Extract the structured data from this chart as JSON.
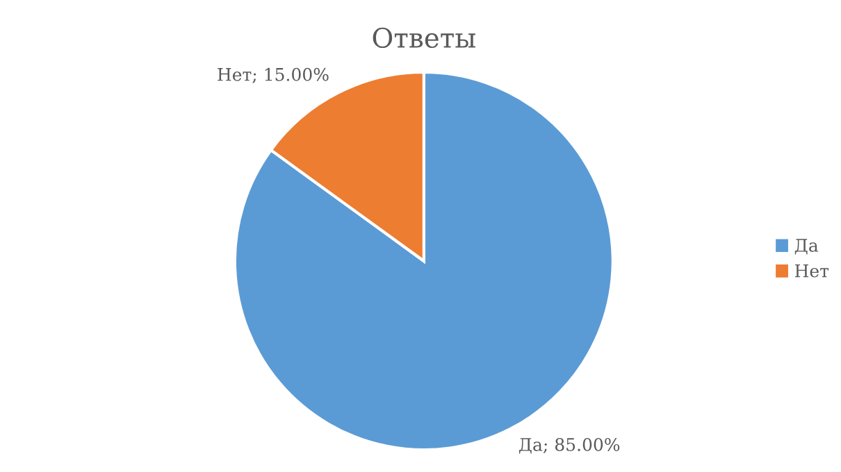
{
  "chart_data": {
    "type": "pie",
    "title": "Ответы",
    "categories": [
      "Да",
      "Нет"
    ],
    "values": [
      85,
      15
    ],
    "colors": [
      "#5b9bd5",
      "#ed7d31"
    ],
    "value_labels": [
      "Да; 85.00%",
      "Нет; 15.00%"
    ],
    "legend": "right"
  }
}
